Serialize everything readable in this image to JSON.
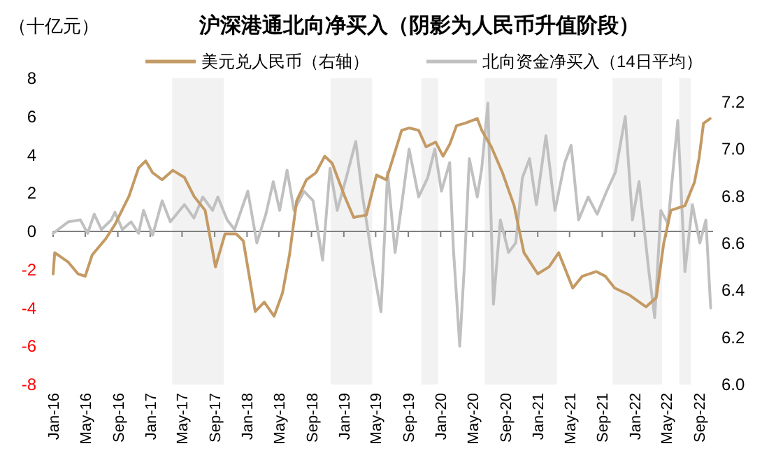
{
  "chart_data": {
    "type": "line",
    "title": "沪深港通北向净买入（阴影为人民币升值阶段）",
    "ylabel": "（十亿元）",
    "legend": "top",
    "xlim": [
      "2016-01-01",
      "2022-10-24"
    ],
    "xticks": [
      {
        "value": "2016-01-01",
        "label": "Jan-16"
      },
      {
        "value": "2016-05-01",
        "label": "May-16"
      },
      {
        "value": "2016-09-01",
        "label": "Sep-16"
      },
      {
        "value": "2017-01-01",
        "label": "Jan-17"
      },
      {
        "value": "2017-05-01",
        "label": "May-17"
      },
      {
        "value": "2017-09-01",
        "label": "Sep-17"
      },
      {
        "value": "2018-01-01",
        "label": "Jan-18"
      },
      {
        "value": "2018-05-01",
        "label": "May-18"
      },
      {
        "value": "2018-09-01",
        "label": "Sep-18"
      },
      {
        "value": "2019-01-01",
        "label": "Jan-19"
      },
      {
        "value": "2019-05-01",
        "label": "May-19"
      },
      {
        "value": "2019-09-01",
        "label": "Sep-19"
      },
      {
        "value": "2020-01-01",
        "label": "Jan-20"
      },
      {
        "value": "2020-05-01",
        "label": "May-20"
      },
      {
        "value": "2020-09-01",
        "label": "Sep-20"
      },
      {
        "value": "2021-01-01",
        "label": "Jan-21"
      },
      {
        "value": "2021-05-01",
        "label": "May-21"
      },
      {
        "value": "2021-09-01",
        "label": "Sep-21"
      },
      {
        "value": "2022-01-01",
        "label": "Jan-22"
      },
      {
        "value": "2022-05-01",
        "label": "May-22"
      },
      {
        "value": "2022-09-01",
        "label": "Sep-22"
      }
    ],
    "ylim": [
      -8,
      8
    ],
    "yticks": [
      -8,
      -6,
      -4,
      -2,
      0,
      2,
      4,
      6,
      8
    ],
    "y2lim": [
      6.0,
      7.2
    ],
    "y2ticks": [
      {
        "value": 6,
        "label": "6.0"
      },
      6.2,
      6.4,
      6.6,
      6.8,
      {
        "value": 7,
        "label": "7.0"
      },
      7.2
    ],
    "bands": [
      {
        "axis": "x",
        "from": "2017-03-25",
        "to": "2017-10-05",
        "color": "#f2f2f2"
      },
      {
        "axis": "x",
        "from": "2018-11-12",
        "to": "2019-04-18",
        "color": "#f2f2f2"
      },
      {
        "axis": "x",
        "from": "2019-10-20",
        "to": "2019-12-22",
        "color": "#f2f2f2"
      },
      {
        "axis": "x",
        "from": "2020-06-15",
        "to": "2021-03-15",
        "color": "#f2f2f2"
      },
      {
        "axis": "x",
        "from": "2021-10-10",
        "to": "2022-04-15",
        "color": "#f2f2f2"
      },
      {
        "axis": "x",
        "from": "2022-06-18",
        "to": "2022-08-01",
        "color": "#f2f2f2"
      }
    ],
    "series": [
      {
        "name": "美元兑人民币（右轴）",
        "color": "#c49a64",
        "axis": "y2",
        "x": [
          "2016-01-01",
          "2016-01-07",
          "2016-02-27",
          "2016-04-04",
          "2016-05-01",
          "2016-05-27",
          "2016-07-18",
          "2016-08-21",
          "2016-10-13",
          "2016-11-18",
          "2016-12-15",
          "2017-01-10",
          "2017-02-15",
          "2017-03-27",
          "2017-05-10",
          "2017-06-15",
          "2017-07-27",
          "2017-09-04",
          "2017-10-10",
          "2017-11-21",
          "2017-12-18",
          "2018-02-01",
          "2018-03-07",
          "2018-04-13",
          "2018-05-15",
          "2018-06-10",
          "2018-07-07",
          "2018-08-13",
          "2018-09-18",
          "2018-10-21",
          "2018-11-18",
          "2019-01-04",
          "2019-02-07",
          "2019-03-27",
          "2019-05-04",
          "2019-06-10",
          "2019-08-07",
          "2019-09-04",
          "2019-10-10",
          "2019-11-07",
          "2019-12-13",
          "2020-01-10",
          "2020-02-04",
          "2020-03-01",
          "2020-04-01",
          "2020-05-18",
          "2020-06-04",
          "2020-07-10",
          "2020-08-21",
          "2020-10-04",
          "2020-11-10",
          "2021-01-01",
          "2021-02-13",
          "2021-03-21",
          "2021-05-13",
          "2021-06-18",
          "2021-08-10",
          "2021-09-13",
          "2021-10-18",
          "2021-12-13",
          "2022-02-13",
          "2022-03-24",
          "2022-04-21",
          "2022-05-18",
          "2022-07-10",
          "2022-08-15",
          "2022-09-01",
          "2022-09-18",
          "2022-10-13"
        ],
        "values": [
          6.47,
          6.56,
          6.52,
          6.47,
          6.46,
          6.55,
          6.62,
          6.68,
          6.8,
          6.92,
          6.95,
          6.9,
          6.87,
          6.91,
          6.88,
          6.8,
          6.74,
          6.5,
          6.64,
          6.64,
          6.61,
          6.31,
          6.35,
          6.29,
          6.39,
          6.55,
          6.78,
          6.87,
          6.9,
          6.97,
          6.94,
          6.8,
          6.71,
          6.72,
          6.89,
          6.87,
          7.08,
          7.09,
          7.08,
          7.01,
          7.03,
          6.97,
          7.02,
          7.1,
          7.11,
          7.13,
          7.08,
          7.01,
          6.9,
          6.76,
          6.56,
          6.47,
          6.5,
          6.56,
          6.41,
          6.46,
          6.48,
          6.46,
          6.41,
          6.38,
          6.33,
          6.37,
          6.6,
          6.74,
          6.76,
          6.86,
          6.96,
          7.11,
          7.13
        ]
      },
      {
        "name": "北向资金净买入（14日平均）",
        "color": "#c0c0c0",
        "x": [
          "2016-01-01",
          "2016-02-27",
          "2016-04-13",
          "2016-05-10",
          "2016-06-04",
          "2016-07-01",
          "2016-08-07",
          "2016-08-21",
          "2016-09-18",
          "2016-10-21",
          "2016-11-18",
          "2016-12-07",
          "2017-01-10",
          "2017-02-15",
          "2017-03-18",
          "2017-05-10",
          "2017-06-15",
          "2017-07-18",
          "2017-08-24",
          "2017-09-13",
          "2017-10-18",
          "2017-11-15",
          "2018-01-04",
          "2018-02-07",
          "2018-03-13",
          "2018-04-10",
          "2018-05-04",
          "2018-06-01",
          "2018-06-27",
          "2018-08-04",
          "2018-09-07",
          "2018-10-13",
          "2018-11-10",
          "2018-12-07",
          "2019-01-10",
          "2019-02-15",
          "2019-03-13",
          "2019-04-01",
          "2019-04-27",
          "2019-05-21",
          "2019-06-15",
          "2019-07-13",
          "2019-08-07",
          "2019-09-04",
          "2019-10-10",
          "2019-11-13",
          "2019-12-10",
          "2020-01-04",
          "2020-02-04",
          "2020-02-18",
          "2020-03-13",
          "2020-04-01",
          "2020-04-18",
          "2020-05-18",
          "2020-06-04",
          "2020-06-27",
          "2020-07-18",
          "2020-08-13",
          "2020-09-13",
          "2020-10-10",
          "2020-11-04",
          "2020-12-01",
          "2020-12-27",
          "2021-02-01",
          "2021-03-07",
          "2021-04-13",
          "2021-05-07",
          "2021-06-04",
          "2021-07-10",
          "2021-08-13",
          "2021-09-18",
          "2021-10-21",
          "2021-11-27",
          "2021-12-24",
          "2022-01-18",
          "2022-02-24",
          "2022-03-18",
          "2022-04-10",
          "2022-05-07",
          "2022-06-13",
          "2022-07-10",
          "2022-08-07",
          "2022-09-04",
          "2022-09-27",
          "2022-10-15"
        ],
        "values": [
          -0.1,
          0.5,
          0.6,
          -0.1,
          0.9,
          0.1,
          0.6,
          1.0,
          0.1,
          0.5,
          -0.1,
          1.1,
          -0.2,
          1.6,
          0.5,
          1.4,
          0.7,
          1.8,
          1.1,
          1.8,
          0.6,
          0.1,
          2.1,
          -0.6,
          0.9,
          2.6,
          1.1,
          3.2,
          1.1,
          2.1,
          1.6,
          -1.5,
          3.3,
          1.1,
          2.8,
          4.7,
          1.8,
          0.1,
          -2.3,
          -4.2,
          3.1,
          -1.1,
          1.4,
          4.3,
          1.8,
          2.8,
          4.3,
          2.1,
          3.6,
          -0.9,
          -6.0,
          -1.4,
          3.8,
          1.8,
          3.3,
          6.7,
          -3.8,
          0.6,
          -1.1,
          -0.6,
          2.8,
          3.8,
          1.4,
          5.0,
          1.1,
          3.6,
          4.5,
          0.6,
          1.8,
          0.9,
          2.1,
          3.1,
          6.0,
          0.6,
          2.6,
          -2.1,
          -4.5,
          1.1,
          0.4,
          5.8,
          -2.1,
          1.4,
          -0.6,
          0.6,
          -4.0
        ]
      }
    ]
  }
}
